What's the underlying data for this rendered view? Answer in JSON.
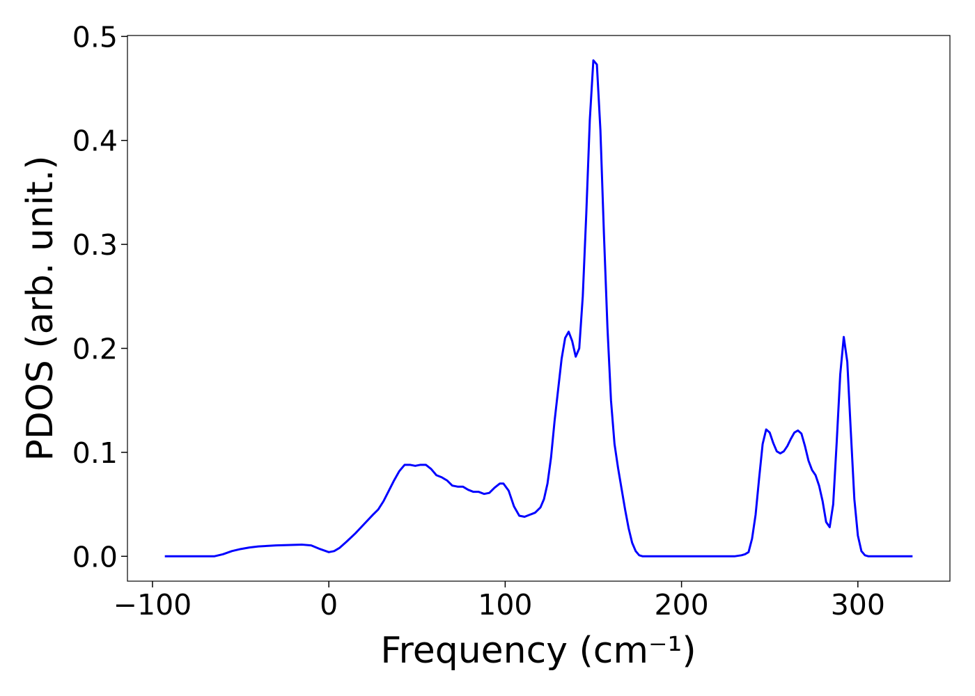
{
  "chart_data": {
    "type": "line",
    "xlabel": "Frequency (cm⁻¹)",
    "ylabel": "PDOS (arb. unit.)",
    "x": [
      -93,
      -80,
      -65,
      -60,
      -55,
      -50,
      -45,
      -40,
      -30,
      -20,
      -15,
      -10,
      -5,
      0,
      3,
      6,
      10,
      15,
      20,
      25,
      28,
      31,
      34,
      37,
      40,
      43,
      46,
      49,
      52,
      55,
      58,
      61,
      64,
      67,
      70,
      73,
      76,
      79,
      82,
      85,
      88,
      91,
      94,
      97,
      99,
      102,
      105,
      108,
      111,
      114,
      117,
      120,
      122,
      124,
      126,
      128,
      130,
      132,
      134,
      136,
      138,
      140,
      142,
      144,
      146,
      148,
      150,
      152,
      154,
      156,
      158,
      160,
      162,
      164,
      166,
      168,
      170,
      172,
      174,
      176,
      178,
      190,
      230,
      234,
      236,
      238,
      240,
      242,
      244,
      246,
      248,
      250,
      252,
      254,
      256,
      258,
      260,
      262,
      264,
      266,
      268,
      270,
      272,
      274,
      276,
      278,
      280,
      282,
      284,
      286,
      288,
      290,
      292,
      294,
      296,
      298,
      300,
      302,
      304,
      306,
      331
    ],
    "series": [
      {
        "color": "#0000ff",
        "values": [
          0,
          0,
          0,
          0.002,
          0.005,
          0.007,
          0.0085,
          0.0095,
          0.0105,
          0.011,
          0.0112,
          0.0105,
          0.007,
          0.004,
          0.005,
          0.008,
          0.014,
          0.022,
          0.031,
          0.04,
          0.045,
          0.053,
          0.063,
          0.073,
          0.082,
          0.088,
          0.088,
          0.087,
          0.088,
          0.088,
          0.084,
          0.078,
          0.076,
          0.073,
          0.068,
          0.067,
          0.067,
          0.064,
          0.062,
          0.062,
          0.06,
          0.061,
          0.066,
          0.07,
          0.07,
          0.063,
          0.048,
          0.039,
          0.038,
          0.04,
          0.042,
          0.047,
          0.055,
          0.07,
          0.095,
          0.13,
          0.16,
          0.19,
          0.21,
          0.216,
          0.207,
          0.192,
          0.2,
          0.25,
          0.33,
          0.42,
          0.477,
          0.473,
          0.41,
          0.31,
          0.22,
          0.15,
          0.108,
          0.085,
          0.065,
          0.045,
          0.027,
          0.013,
          0.005,
          0.001,
          0,
          0,
          0,
          0.001,
          0.002,
          0.004,
          0.017,
          0.04,
          0.075,
          0.108,
          0.122,
          0.119,
          0.109,
          0.101,
          0.099,
          0.101,
          0.106,
          0.113,
          0.119,
          0.121,
          0.118,
          0.106,
          0.092,
          0.083,
          0.078,
          0.068,
          0.053,
          0.033,
          0.028,
          0.05,
          0.11,
          0.175,
          0.211,
          0.187,
          0.12,
          0.055,
          0.02,
          0.005,
          0.001,
          0,
          0
        ]
      }
    ],
    "xlim": [
      -114.2,
      352.2
    ],
    "ylim": [
      -0.0239,
      0.5009
    ],
    "xticks": [
      {
        "value": -100,
        "label": "−100"
      },
      0,
      100,
      200,
      300
    ],
    "yticks": [
      {
        "value": 0,
        "label": "0.0"
      },
      0.1,
      0.2,
      0.3,
      0.4,
      0.5
    ]
  }
}
